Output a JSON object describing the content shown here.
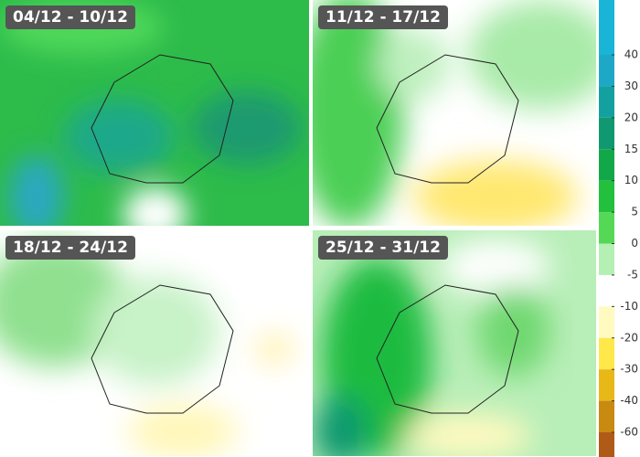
{
  "panels": [
    {
      "label": "04/12 - 10/12"
    },
    {
      "label": "11/12 - 17/12"
    },
    {
      "label": "18/12 - 24/12"
    },
    {
      "label": "25/12 - 31/12"
    }
  ],
  "legend": {
    "ticks": [
      40,
      30,
      20,
      15,
      10,
      5,
      0,
      -5,
      -10,
      -20,
      -30,
      -40,
      -60
    ],
    "colors": [
      "#19b4d6",
      "#1ea8c8",
      "#15a0a0",
      "#109870",
      "#12a84a",
      "#22c03c",
      "#55d855",
      "#b4efb4",
      "#ffffff",
      "#fffbc0",
      "#ffe84a",
      "#e8b818",
      "#c88a10",
      "#b05a18",
      "#983010"
    ]
  }
}
